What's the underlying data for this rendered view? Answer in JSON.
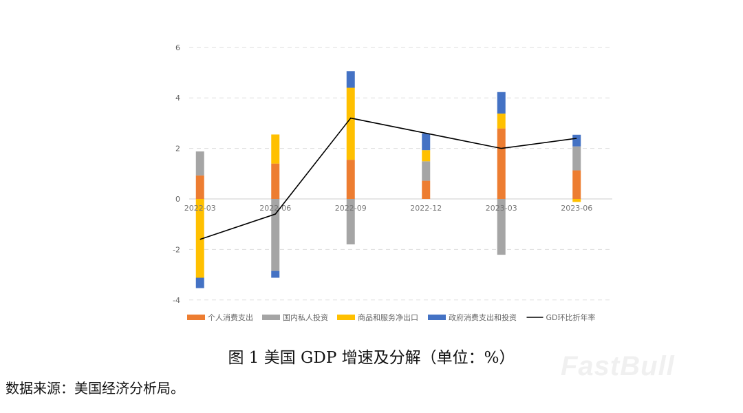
{
  "chart_data": {
    "type": "bar",
    "stacked": true,
    "categories": [
      "2022-03",
      "2022-06",
      "2022-09",
      "2022-12",
      "2023-03",
      "2023-06"
    ],
    "ylim": [
      -4,
      6
    ],
    "yticks": [
      -4,
      -2,
      0,
      2,
      4,
      6
    ],
    "grid": true,
    "legend_position": "bottom",
    "series": [
      {
        "name": "个人消费支出",
        "color": "#ED7D31",
        "values": [
          0.93,
          1.4,
          1.55,
          0.72,
          2.79,
          1.13
        ]
      },
      {
        "name": "国内私人投资",
        "color": "#A5A5A5",
        "values": [
          0.95,
          -2.85,
          -1.8,
          0.77,
          -2.21,
          0.95
        ]
      },
      {
        "name": "商品和服务净出口",
        "color": "#FFC000",
        "values": [
          -3.12,
          1.15,
          2.85,
          0.44,
          0.59,
          -0.12
        ]
      },
      {
        "name": "政府消费支出和投资",
        "color": "#4472C4",
        "values": [
          -0.41,
          -0.27,
          0.66,
          0.66,
          0.85,
          0.46
        ]
      }
    ],
    "line": {
      "name": "GD环比折年率",
      "color": "#000000",
      "values": [
        -1.6,
        -0.6,
        3.2,
        2.6,
        2.0,
        2.4
      ]
    }
  },
  "caption": "图 1 美国 GDP 增速及分解（单位：%）",
  "source": "数据来源：美国经济分析局。",
  "watermark": "FastBull"
}
